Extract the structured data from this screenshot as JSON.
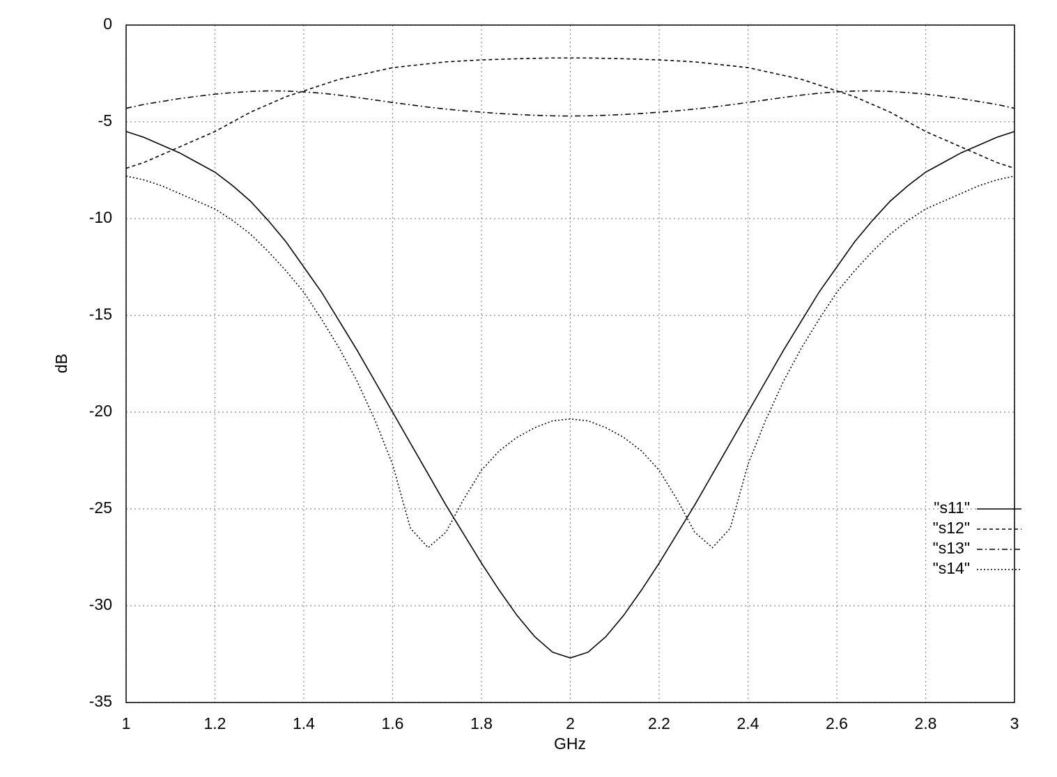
{
  "chart_data": {
    "type": "line",
    "x_label": "GHz",
    "y_label": "dB",
    "x": [
      1.0,
      1.04,
      1.08,
      1.12,
      1.16,
      1.2,
      1.24,
      1.28,
      1.32,
      1.36,
      1.4,
      1.44,
      1.48,
      1.52,
      1.56,
      1.6,
      1.64,
      1.68,
      1.72,
      1.76,
      1.8,
      1.84,
      1.88,
      1.92,
      1.96,
      2.0,
      2.04,
      2.08,
      2.12,
      2.16,
      2.2,
      2.24,
      2.28,
      2.32,
      2.36,
      2.4,
      2.44,
      2.48,
      2.52,
      2.56,
      2.6,
      2.64,
      2.68,
      2.72,
      2.76,
      2.8,
      2.84,
      2.88,
      2.92,
      2.96,
      3.0
    ],
    "series": [
      {
        "name": "\"s11\"",
        "color": "#000000",
        "dash": "none",
        "values": [
          -5.5,
          -5.8,
          -6.2,
          -6.6,
          -7.1,
          -7.6,
          -8.3,
          -9.1,
          -10.1,
          -11.2,
          -12.5,
          -13.8,
          -15.3,
          -16.8,
          -18.4,
          -20.0,
          -21.6,
          -23.2,
          -24.8,
          -26.3,
          -27.8,
          -29.2,
          -30.5,
          -31.6,
          -32.4,
          -32.7,
          -32.4,
          -31.6,
          -30.5,
          -29.2,
          -27.8,
          -26.3,
          -24.8,
          -23.2,
          -21.6,
          -20.0,
          -18.4,
          -16.8,
          -15.3,
          -13.8,
          -12.5,
          -11.2,
          -10.1,
          -9.1,
          -8.3,
          -7.6,
          -7.1,
          -6.6,
          -6.2,
          -5.8,
          -5.5
        ]
      },
      {
        "name": "\"s12\"",
        "color": "#000000",
        "dash": "5,4",
        "values": [
          -7.4,
          -7.1,
          -6.7,
          -6.3,
          -5.9,
          -5.5,
          -5.0,
          -4.5,
          -4.1,
          -3.7,
          -3.4,
          -3.1,
          -2.8,
          -2.6,
          -2.4,
          -2.2,
          -2.1,
          -2.0,
          -1.9,
          -1.85,
          -1.8,
          -1.77,
          -1.74,
          -1.72,
          -1.7,
          -1.7,
          -1.7,
          -1.72,
          -1.74,
          -1.77,
          -1.8,
          -1.85,
          -1.9,
          -2.0,
          -2.1,
          -2.2,
          -2.4,
          -2.6,
          -2.8,
          -3.1,
          -3.4,
          -3.7,
          -4.1,
          -4.5,
          -5.0,
          -5.5,
          -5.9,
          -6.3,
          -6.7,
          -7.1,
          -7.4
        ]
      },
      {
        "name": "\"s13\"",
        "color": "#000000",
        "dash": "8,4,2,4",
        "values": [
          -4.3,
          -4.1,
          -3.95,
          -3.8,
          -3.68,
          -3.57,
          -3.49,
          -3.43,
          -3.4,
          -3.41,
          -3.45,
          -3.52,
          -3.62,
          -3.74,
          -3.87,
          -4.0,
          -4.12,
          -4.24,
          -4.34,
          -4.43,
          -4.5,
          -4.57,
          -4.62,
          -4.66,
          -4.69,
          -4.7,
          -4.69,
          -4.66,
          -4.62,
          -4.57,
          -4.5,
          -4.43,
          -4.34,
          -4.24,
          -4.12,
          -4.0,
          -3.87,
          -3.74,
          -3.62,
          -3.52,
          -3.45,
          -3.41,
          -3.4,
          -3.43,
          -3.49,
          -3.57,
          -3.68,
          -3.8,
          -3.95,
          -4.1,
          -4.3
        ]
      },
      {
        "name": "\"s14\"",
        "color": "#000000",
        "dash": "2,3",
        "values": [
          -7.8,
          -8.0,
          -8.3,
          -8.7,
          -9.1,
          -9.5,
          -10.1,
          -10.8,
          -11.7,
          -12.7,
          -13.8,
          -15.2,
          -16.7,
          -18.4,
          -20.4,
          -22.7,
          -26.0,
          -27.0,
          -26.2,
          -24.5,
          -23.0,
          -22.0,
          -21.3,
          -20.8,
          -20.45,
          -20.35,
          -20.45,
          -20.8,
          -21.3,
          -22.0,
          -23.0,
          -24.5,
          -26.2,
          -27.0,
          -26.0,
          -22.7,
          -20.4,
          -18.4,
          -16.7,
          -15.2,
          -13.8,
          -12.7,
          -11.7,
          -10.8,
          -10.1,
          -9.5,
          -9.1,
          -8.7,
          -8.3,
          -8.0,
          -7.8
        ]
      }
    ],
    "xlim": [
      1,
      3
    ],
    "xticks": [
      1,
      1.2,
      1.4,
      1.6,
      1.8,
      2,
      2.2,
      2.4,
      2.6,
      2.8,
      3
    ],
    "ylim": [
      -35,
      0
    ],
    "yticks": [
      0,
      -5,
      -10,
      -15,
      -20,
      -25,
      -30,
      -35
    ],
    "grid": true
  }
}
